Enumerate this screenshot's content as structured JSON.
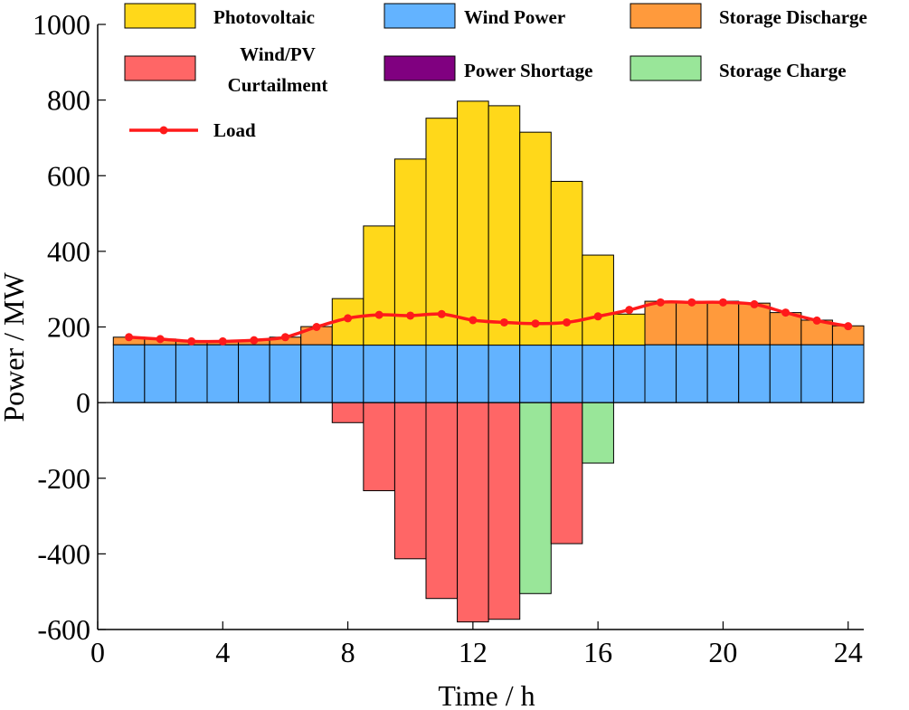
{
  "chart_data": {
    "type": "bar",
    "stacked": true,
    "xlabel": "Time / h",
    "ylabel": "Power / MW",
    "xlim": [
      0,
      24.5
    ],
    "ylim": [
      -600,
      1000
    ],
    "xticks": [
      0,
      4,
      8,
      12,
      16,
      20,
      24
    ],
    "yticks": [
      -600,
      -400,
      -200,
      0,
      200,
      400,
      600,
      800,
      1000
    ],
    "legend_position": "top",
    "hours": [
      1,
      2,
      3,
      4,
      5,
      6,
      7,
      8,
      9,
      10,
      11,
      12,
      13,
      14,
      15,
      16,
      17,
      18,
      19,
      20,
      21,
      22,
      23,
      24
    ],
    "series": [
      {
        "key": "pv",
        "name": "Photovoltaic",
        "color": "#FFD81A",
        "values": [
          0,
          0,
          0,
          0,
          0,
          0,
          0,
          123,
          315,
          492,
          600,
          645,
          633,
          563,
          433,
          238,
          82,
          0,
          0,
          0,
          0,
          0,
          0,
          0
        ]
      },
      {
        "key": "wind",
        "name": "Wind Power",
        "color": "#63B3FF",
        "values": [
          153,
          153,
          153,
          153,
          153,
          153,
          153,
          152,
          152,
          152,
          152,
          152,
          152,
          152,
          152,
          152,
          152,
          153,
          153,
          153,
          153,
          153,
          153,
          153
        ]
      },
      {
        "key": "discharge",
        "name": "Storage Discharge",
        "color": "#FF9A3C",
        "values": [
          20,
          15,
          10,
          10,
          12,
          20,
          48,
          0,
          0,
          0,
          0,
          0,
          0,
          0,
          0,
          0,
          0,
          115,
          115,
          115,
          110,
          85,
          65,
          50
        ]
      },
      {
        "key": "curtail",
        "name": "Wind/PV Curtailment",
        "color": "#FF6666",
        "values": [
          0,
          0,
          0,
          0,
          0,
          0,
          0,
          -53,
          -233,
          -413,
          -518,
          -580,
          -573,
          0,
          -373,
          0,
          0,
          0,
          0,
          0,
          0,
          0,
          0,
          0
        ]
      },
      {
        "key": "shortage",
        "name": "Power Shortage",
        "color": "#800080",
        "values": [
          0,
          0,
          0,
          0,
          0,
          0,
          0,
          0,
          0,
          0,
          0,
          0,
          0,
          0,
          0,
          0,
          0,
          0,
          0,
          0,
          0,
          0,
          0,
          0
        ]
      },
      {
        "key": "charge",
        "name": "Storage Charge",
        "color": "#99E699",
        "values": [
          0,
          0,
          0,
          0,
          0,
          0,
          0,
          0,
          0,
          0,
          0,
          0,
          0,
          -505,
          0,
          -160,
          0,
          0,
          0,
          0,
          0,
          0,
          0,
          0
        ]
      }
    ],
    "load": {
      "name": "Load",
      "color": "#FF1A1A",
      "values": [
        173,
        168,
        162,
        162,
        165,
        173,
        200,
        223,
        232,
        230,
        234,
        218,
        212,
        209,
        212,
        228,
        245,
        265,
        265,
        265,
        260,
        238,
        217,
        202
      ]
    },
    "legend": {
      "pv": "Photovoltaic",
      "wind": "Wind Power",
      "discharge": "Storage Discharge",
      "curtail_line1": "Wind/PV",
      "curtail_line2": "Curtailment",
      "shortage": "Power Shortage",
      "charge": "Storage Charge",
      "load": "Load"
    }
  }
}
